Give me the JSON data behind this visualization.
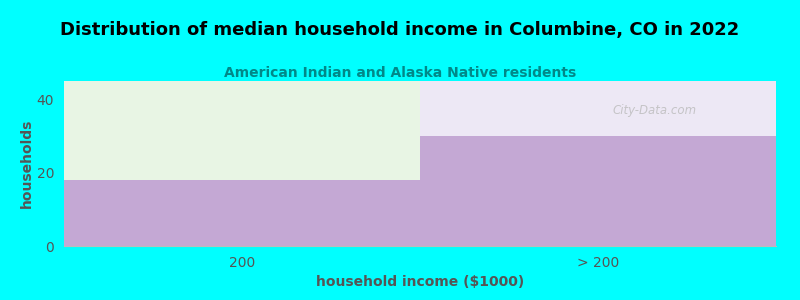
{
  "title": "Distribution of median household income in Columbine, CO in 2022",
  "subtitle": "American Indian and Alaska Native residents",
  "xlabel": "household income ($1000)",
  "ylabel": "households",
  "background_color": "#00FFFF",
  "plot_bg_color": "#FFFFFF",
  "categories": [
    "200",
    "> 200"
  ],
  "values": [
    18,
    30
  ],
  "ymax": 45,
  "yticks": [
    0,
    20,
    40
  ],
  "bar_color": "#C4A8D4",
  "bar_top_color_left": "#E8F5E4",
  "bar_top_color_right": "#EDE8F5",
  "title_fontsize": 13,
  "subtitle_fontsize": 10,
  "subtitle_color": "#008888",
  "axis_label_color": "#555555",
  "tick_color": "#555555",
  "watermark": "City-Data.com"
}
